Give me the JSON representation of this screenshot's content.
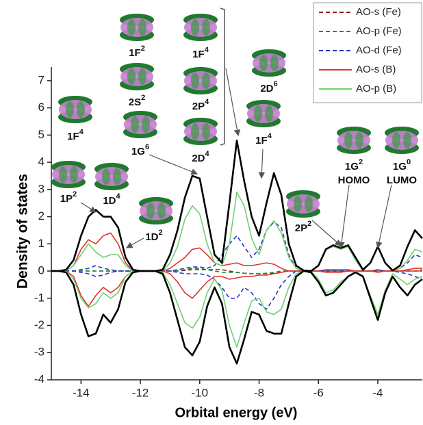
{
  "chart_data": {
    "type": "line",
    "x_label": "Orbital energy (eV)",
    "y_label": "Density of states",
    "xlim": [
      -15,
      -2.5
    ],
    "ylim": [
      -4,
      7.5
    ],
    "xticks": [
      -14,
      -12,
      -10,
      -8,
      -6,
      -4
    ],
    "yticks": [
      -4,
      -3,
      -2,
      -1,
      0,
      1,
      2,
      3,
      4,
      5,
      6,
      7
    ],
    "x": [
      -15,
      -14.75,
      -14.5,
      -14.25,
      -14,
      -13.75,
      -13.5,
      -13.25,
      -13,
      -12.75,
      -12.5,
      -12.25,
      -12,
      -11.75,
      -11.5,
      -11.25,
      -11,
      -10.75,
      -10.5,
      -10.25,
      -10,
      -9.75,
      -9.5,
      -9.25,
      -9,
      -8.75,
      -8.5,
      -8.25,
      -8,
      -7.75,
      -7.5,
      -7.25,
      -7,
      -6.75,
      -6.5,
      -6.25,
      -6,
      -5.75,
      -5.5,
      -5.25,
      -5,
      -4.75,
      -4.5,
      -4.25,
      -4,
      -3.75,
      -3.5,
      -3.25,
      -3,
      -2.75,
      -2.5
    ],
    "legend_position": "upper right",
    "series": [
      {
        "name": "AO-s (Fe)",
        "color": "#8b1a1a",
        "dashed": true,
        "values": [
          0,
          0,
          0,
          0,
          0,
          0,
          0,
          0,
          0,
          0,
          0,
          0,
          0,
          0,
          0,
          0,
          0,
          0,
          0.02,
          0.05,
          0.05,
          0.05,
          0.05,
          0.05,
          0,
          -0.05,
          -0.08,
          -0.1,
          -0.1,
          -0.1,
          -0.08,
          -0.05,
          0,
          0,
          0,
          0,
          0,
          0,
          0,
          0,
          0,
          0,
          0,
          0,
          0,
          0,
          0,
          0,
          0,
          0,
          0
        ]
      },
      {
        "name": "AO-p (Fe)",
        "color": "#1e8c3a",
        "dashed": true,
        "values": [
          0,
          0,
          0,
          0,
          0,
          0,
          0,
          0,
          0,
          0,
          0,
          0,
          0,
          0,
          0,
          0,
          0,
          0,
          0.05,
          0.1,
          0.1,
          0.05,
          0,
          -0.05,
          -0.05,
          -0.05,
          -0.08,
          -0.1,
          -0.1,
          -0.08,
          -0.05,
          0,
          0,
          0,
          0,
          0,
          0,
          0,
          0,
          0,
          0,
          0,
          0,
          0,
          0,
          0,
          0,
          0,
          0,
          0,
          0.05
        ]
      },
      {
        "name": "AO-d (Fe)",
        "color": "#2433c8",
        "dashed": true,
        "values": [
          0,
          0,
          0,
          0,
          0.05,
          0.1,
          0.2,
          0.1,
          0.05,
          0,
          0,
          0,
          0,
          0,
          0,
          0,
          0,
          0.05,
          0.1,
          0.15,
          0.15,
          0.1,
          0.2,
          0.6,
          1.0,
          1.3,
          0.9,
          0.5,
          0.8,
          1.5,
          1.8,
          1.6,
          0.6,
          0.1,
          0,
          0,
          0,
          0,
          0,
          0,
          0,
          0,
          0,
          0,
          0.05,
          0,
          0,
          0.1,
          0.3,
          0.6,
          0.5
        ]
      },
      {
        "name": "AO-s (B)",
        "color": "#e0342c",
        "values": [
          0,
          0,
          0,
          0.2,
          0.8,
          1.15,
          1.0,
          1.3,
          1.4,
          1.0,
          0.3,
          0,
          0,
          0,
          0,
          0,
          0.1,
          0.3,
          0.5,
          0.8,
          0.85,
          0.6,
          0.3,
          0.2,
          0.25,
          0.3,
          0.2,
          0.2,
          0.25,
          0.3,
          0.25,
          0.1,
          0,
          0,
          0,
          0,
          0,
          0.05,
          0.05,
          0.05,
          0.05,
          0,
          0,
          0,
          0.05,
          0,
          0,
          0,
          0.05,
          0.1,
          0.1
        ]
      },
      {
        "name": "AO-p (B)",
        "color": "#6fd06f",
        "values": [
          0,
          0,
          0,
          0.2,
          0.6,
          1.0,
          0.7,
          0.5,
          0.6,
          0.6,
          0.2,
          0,
          0,
          0,
          0,
          0,
          0.3,
          0.9,
          1.9,
          2.4,
          2.1,
          1.0,
          0.3,
          0.2,
          1.0,
          2.9,
          2.4,
          1.2,
          0.6,
          1.5,
          1.85,
          1.4,
          0.5,
          0.1,
          0,
          0,
          0.2,
          0.8,
          0.9,
          0.8,
          0.9,
          0.4,
          0,
          0.3,
          0.9,
          0.3,
          0,
          0.1,
          0.4,
          0.8,
          0.7
        ]
      },
      {
        "color": "#2433c8",
        "dashed": true,
        "values": [
          0,
          0,
          0,
          0,
          -0.05,
          -0.1,
          -0.2,
          -0.15,
          -0.05,
          0,
          0,
          0,
          0,
          0,
          0,
          0,
          0,
          -0.05,
          -0.1,
          -0.1,
          -0.1,
          -0.15,
          -0.3,
          -0.6,
          -1.0,
          -1.0,
          -0.6,
          -0.8,
          -1.2,
          -1.4,
          -1.0,
          -0.5,
          -0.2,
          0,
          0,
          0,
          0,
          0,
          0,
          0,
          0,
          0,
          0,
          0,
          0,
          0,
          0,
          -0.05,
          -0.1,
          -0.2,
          -0.3
        ]
      },
      {
        "color": "#e0342c",
        "values": [
          0,
          0,
          0,
          -0.2,
          -0.9,
          -1.3,
          -0.9,
          -0.6,
          -0.8,
          -0.6,
          -0.2,
          0,
          0,
          0,
          0,
          0,
          -0.1,
          -0.4,
          -0.8,
          -1.0,
          -0.7,
          -0.4,
          -0.2,
          -0.2,
          -0.3,
          -0.25,
          -0.2,
          -0.2,
          -0.15,
          -0.15,
          -0.1,
          -0.05,
          0,
          0,
          0,
          0,
          0,
          -0.05,
          -0.05,
          -0.05,
          0,
          0,
          0,
          0,
          -0.05,
          0,
          0,
          0,
          0,
          0,
          0
        ]
      },
      {
        "color": "#6fd06f",
        "values": [
          0,
          0,
          0,
          -0.3,
          -1.0,
          -1.35,
          -1.2,
          -0.8,
          -1.0,
          -0.8,
          -0.2,
          0,
          0,
          0,
          0,
          -0.05,
          -0.5,
          -1.2,
          -1.9,
          -2.1,
          -1.7,
          -0.8,
          -0.3,
          -0.7,
          -2.0,
          -2.8,
          -1.9,
          -1.1,
          -1.0,
          -1.5,
          -1.6,
          -1.4,
          -0.6,
          -0.1,
          0,
          0,
          -0.3,
          -0.8,
          -0.7,
          -0.4,
          -0.2,
          0,
          -0.2,
          -0.9,
          -1.6,
          -0.7,
          -0.1,
          -0.3,
          -0.5,
          -0.3,
          -0.2
        ]
      },
      {
        "color": "#000000",
        "values": [
          0,
          0,
          0.05,
          0.4,
          1.3,
          2.0,
          2.25,
          2.0,
          2.0,
          1.6,
          0.5,
          0.05,
          0,
          0,
          0,
          0.05,
          0.6,
          1.5,
          2.7,
          3.5,
          3.4,
          2.0,
          0.6,
          0.3,
          2.5,
          4.8,
          3.3,
          2.0,
          1.3,
          2.5,
          3.6,
          2.8,
          1.0,
          0.2,
          0.02,
          0,
          0.2,
          0.8,
          0.95,
          0.85,
          0.95,
          0.5,
          0.05,
          0.3,
          0.9,
          0.3,
          0.02,
          0.2,
          0.9,
          1.5,
          1.2
        ]
      },
      {
        "color": "#000000",
        "values": [
          0,
          0,
          -0.05,
          -0.5,
          -1.6,
          -2.4,
          -2.3,
          -1.6,
          -1.9,
          -1.4,
          -0.4,
          -0.05,
          0,
          0,
          0,
          -0.1,
          -0.8,
          -1.8,
          -2.8,
          -3.1,
          -2.6,
          -1.3,
          -0.6,
          -1.2,
          -2.8,
          -3.4,
          -2.5,
          -1.5,
          -1.6,
          -2.2,
          -2.3,
          -2.3,
          -1.2,
          -0.2,
          0,
          -0.05,
          -0.4,
          -0.9,
          -0.8,
          -0.5,
          -0.2,
          -0.05,
          -0.2,
          -1.0,
          -1.8,
          -0.8,
          -0.2,
          -0.6,
          -0.9,
          -0.5,
          -0.3
        ]
      }
    ],
    "annotations": [
      {
        "label": "1F",
        "sup": "2"
      },
      {
        "label": "1F",
        "sup": "4"
      },
      {
        "label": "2S",
        "sup": "2"
      },
      {
        "label": "2P",
        "sup": "4"
      },
      {
        "label": "1G",
        "sup": "6"
      },
      {
        "label": "2D",
        "sup": "4"
      },
      {
        "label": "1F",
        "sup": "4"
      },
      {
        "label": "1P",
        "sup": "2"
      },
      {
        "label": "1D",
        "sup": "4"
      },
      {
        "label": "1D",
        "sup": "2"
      },
      {
        "label": "2D",
        "sup": "6"
      },
      {
        "label": "1F",
        "sup": "4"
      },
      {
        "label": "2P",
        "sup": "2"
      },
      {
        "label": "1G",
        "sup": "2",
        "note": "HOMO"
      },
      {
        "label": "1G",
        "sup": "0",
        "note": "LUMO"
      }
    ]
  }
}
